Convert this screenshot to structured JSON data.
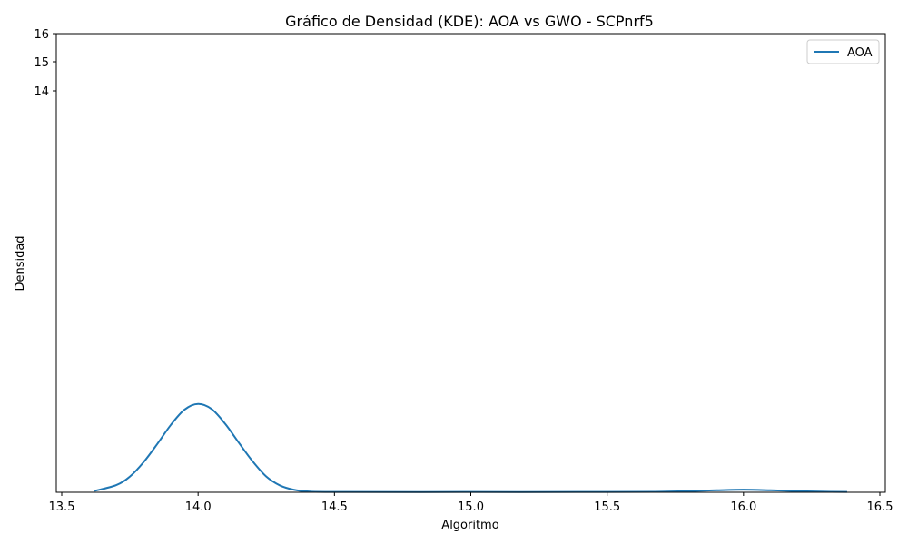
{
  "chart_data": {
    "type": "line",
    "title": "Gráfico de Densidad (KDE): AOA vs GWO - SCPnrf5",
    "xlabel": "Algoritmo",
    "ylabel": "Densidad",
    "xlim": [
      13.48,
      16.52
    ],
    "ylim": [
      0,
      16
    ],
    "x_ticks": [
      13.5,
      14.0,
      14.5,
      15.0,
      15.5,
      16.0,
      16.5
    ],
    "x_tick_labels": [
      "13.5",
      "14.0",
      "14.5",
      "15.0",
      "15.5",
      "16.0",
      "16.5"
    ],
    "y_ticks": [
      14,
      15,
      16
    ],
    "y_tick_labels": [
      "14",
      "15",
      "16"
    ],
    "legend_position": "upper right",
    "grid": false,
    "series": [
      {
        "name": "AOA",
        "color": "#1f77b4",
        "x": [
          13.62,
          13.7,
          13.75,
          13.8,
          13.85,
          13.9,
          13.95,
          14.0,
          14.05,
          14.1,
          14.15,
          14.2,
          14.25,
          14.3,
          14.35,
          14.4,
          14.5,
          15.0,
          15.5,
          15.7,
          15.8,
          15.9,
          16.0,
          16.1,
          16.2,
          16.3,
          16.38
        ],
        "y": [
          0.05,
          0.25,
          0.55,
          1.05,
          1.68,
          2.35,
          2.88,
          3.08,
          2.9,
          2.38,
          1.72,
          1.08,
          0.55,
          0.24,
          0.09,
          0.03,
          0.01,
          0.01,
          0.01,
          0.02,
          0.04,
          0.07,
          0.09,
          0.07,
          0.04,
          0.02,
          0.01
        ]
      }
    ]
  }
}
